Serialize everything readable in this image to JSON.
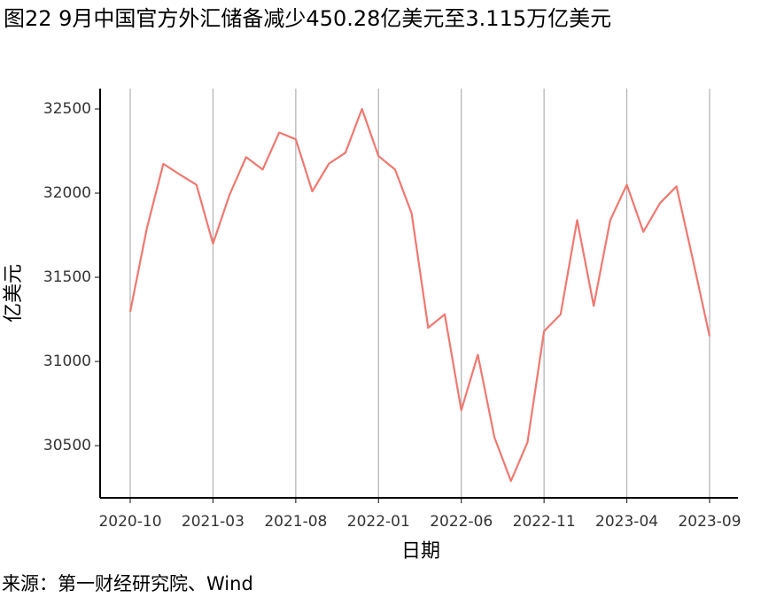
{
  "chart_data": {
    "type": "line",
    "title": "图22 9月中国官方外汇储备减少450.28亿美元至3.115万亿美元",
    "y_label": "亿美元",
    "x_label": "日期",
    "source": "来源：第一财经研究院、Wind",
    "categories": [
      "2020-10",
      null,
      null,
      null,
      null,
      "2021-03",
      null,
      null,
      null,
      null,
      "2021-08",
      null,
      null,
      null,
      null,
      "2022-01",
      null,
      null,
      null,
      null,
      "2022-06",
      null,
      null,
      null,
      null,
      "2022-11",
      null,
      null,
      null,
      null,
      "2023-04",
      null,
      null,
      null,
      null,
      "2023-09"
    ],
    "series": [
      {
        "name": "外汇储备",
        "color": "#f07870",
        "values": [
          31295,
          31789,
          32174,
          32110,
          32050,
          31700,
          31990,
          32214,
          32140,
          32360,
          32320,
          32010,
          32175,
          32240,
          32500,
          32220,
          32140,
          31880,
          31200,
          31280,
          30710,
          31040,
          30550,
          30290,
          30520,
          31180,
          31280,
          31840,
          31330,
          31840,
          32050,
          31770,
          31940,
          32040,
          31600,
          31150
        ]
      }
    ],
    "ylim": [
      30190,
      32621
    ],
    "yticks": [
      30500,
      31000,
      31500,
      32000,
      32500
    ],
    "grid": "x"
  }
}
